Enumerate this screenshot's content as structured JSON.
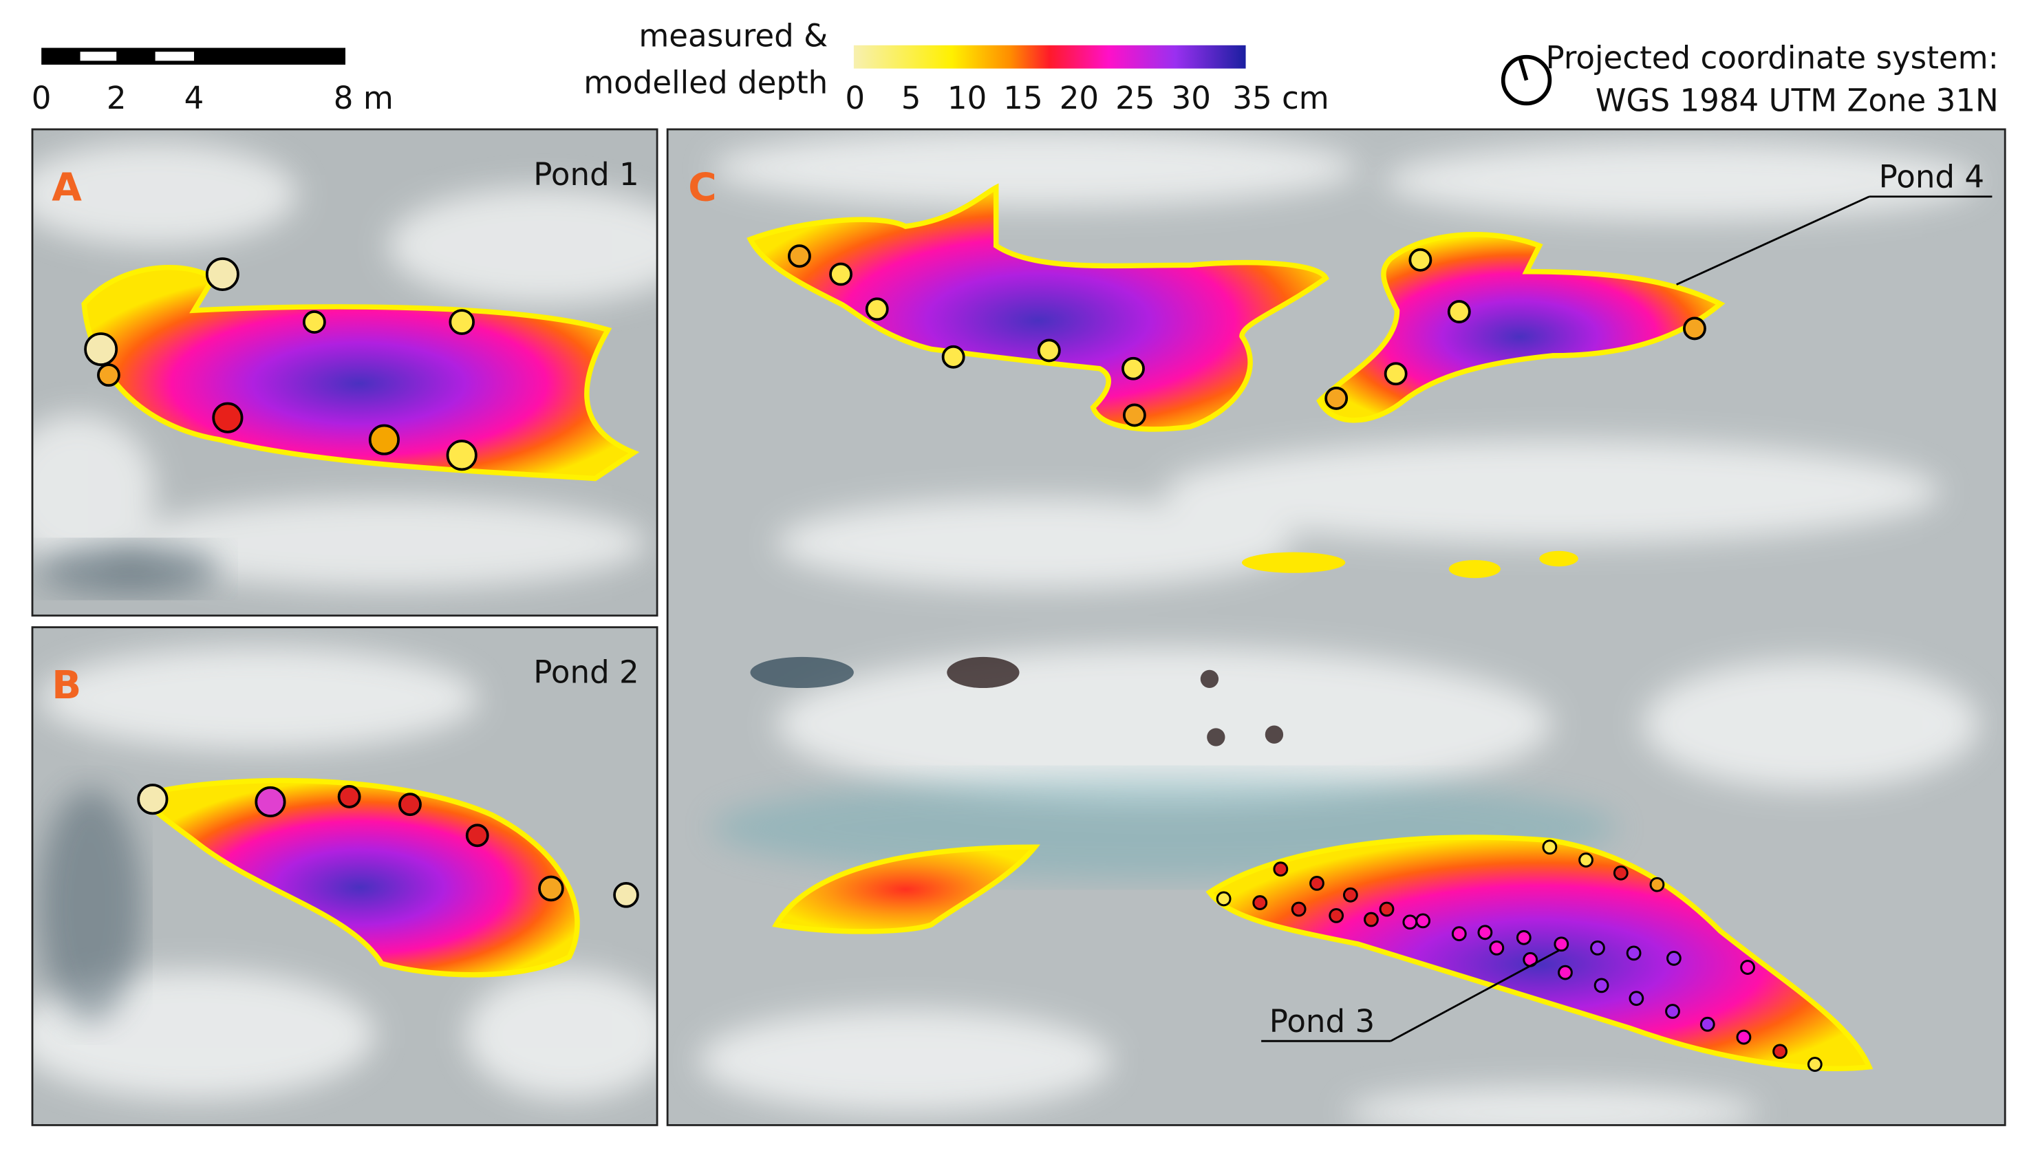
{
  "scale_bar": {
    "labels": [
      "0",
      "2",
      "4",
      "8 m"
    ]
  },
  "legend": {
    "title": [
      "measured &",
      "modelled depth"
    ],
    "ticks": [
      "0",
      "5",
      "10",
      "15",
      "20",
      "25",
      "30",
      "35 cm"
    ]
  },
  "projection": {
    "label": "Projected coordinate system:",
    "name": "WGS 1984 UTM Zone 31N"
  },
  "panels": [
    {
      "label": "A",
      "pond": "Pond 1"
    },
    {
      "label": "B",
      "pond": "Pond 2"
    },
    {
      "label": "C",
      "ponds": [
        "Pond 4",
        "Pond 3"
      ]
    }
  ]
}
